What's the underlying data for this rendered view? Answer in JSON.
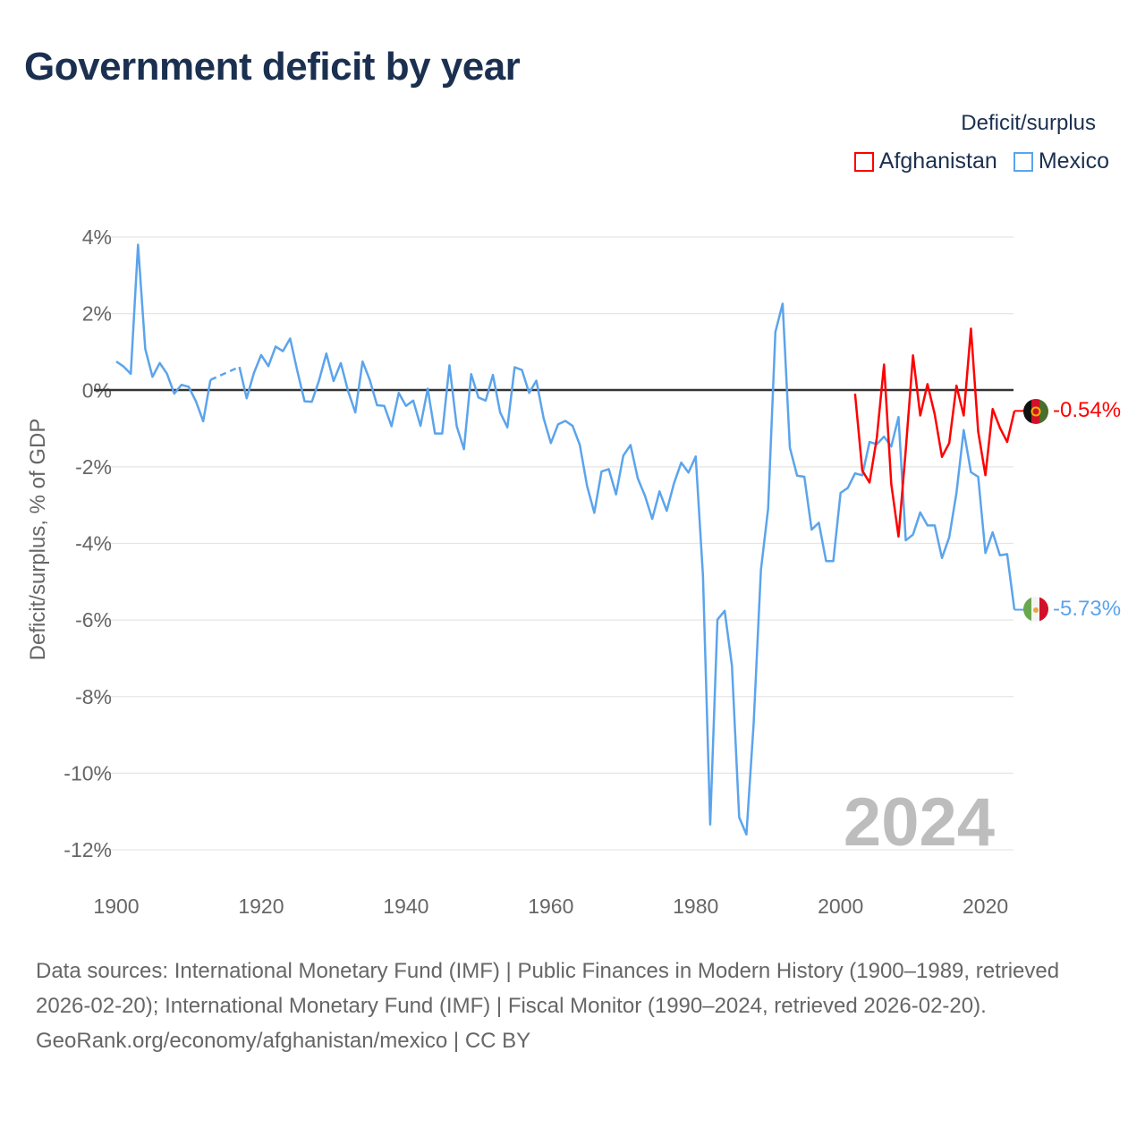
{
  "title": "Government deficit by year",
  "legend": {
    "title": "Deficit/surplus",
    "items": [
      {
        "name": "Afghanistan",
        "color": "#ff0000"
      },
      {
        "name": "Mexico",
        "color": "#5ba4ec"
      }
    ]
  },
  "chart_data": {
    "type": "line",
    "title": "Government deficit by year",
    "xlabel": "",
    "ylabel": "Deficit/surplus, % of GDP",
    "xlim": [
      1900,
      2024
    ],
    "ylim": [
      -12,
      4
    ],
    "x_ticks": [
      1900,
      1920,
      1940,
      1960,
      1980,
      2000,
      2020
    ],
    "y_ticks": [
      4,
      2,
      0,
      -2,
      -4,
      -6,
      -8,
      -10,
      -12
    ],
    "y_tick_labels": [
      "4%",
      "2%",
      "0%",
      "-2%",
      "-4%",
      "-6%",
      "-8%",
      "-10%",
      "-12%"
    ],
    "grid": true,
    "legend_position": "top-right",
    "current_year_label": "2024",
    "series": [
      {
        "name": "Mexico",
        "color": "#5ba4ec",
        "start_year": 1900,
        "end_label": "-5.73%",
        "values": [
          0.75,
          0.62,
          0.43,
          3.8,
          1.08,
          0.35,
          0.71,
          0.43,
          -0.09,
          0.14,
          0.09,
          -0.29,
          -0.81,
          0.27,
          null,
          null,
          null,
          0.61,
          -0.21,
          0.45,
          0.92,
          0.63,
          1.14,
          1.02,
          1.35,
          0.5,
          -0.29,
          -0.3,
          0.26,
          0.96,
          0.24,
          0.71,
          -0.02,
          -0.58,
          0.75,
          0.27,
          -0.39,
          -0.41,
          -0.94,
          -0.07,
          -0.41,
          -0.27,
          -0.93,
          0.04,
          -1.13,
          -1.13,
          0.65,
          -0.94,
          -1.54,
          0.42,
          -0.19,
          -0.27,
          0.4,
          -0.58,
          -0.97,
          0.6,
          0.53,
          -0.07,
          0.25,
          -0.73,
          -1.38,
          -0.89,
          -0.8,
          -0.93,
          -1.43,
          -2.5,
          -3.2,
          -2.12,
          -2.06,
          -2.72,
          -1.71,
          -1.43,
          -2.3,
          -2.76,
          -3.36,
          -2.64,
          -3.15,
          -2.43,
          -1.89,
          -2.15,
          -1.73,
          -4.84,
          -11.34,
          -5.99,
          -5.76,
          -7.19,
          -11.15,
          -11.6,
          -8.7,
          -4.7,
          -3.09,
          1.52,
          2.26,
          -1.5,
          -2.23,
          -2.26,
          -3.64,
          -3.46,
          -4.46,
          -4.46,
          -2.68,
          -2.55,
          -2.17,
          -2.22,
          -1.35,
          -1.41,
          -1.21,
          -1.47,
          -0.7,
          -3.92,
          -3.77,
          -3.19,
          -3.53,
          -3.53,
          -4.38,
          -3.84,
          -2.68,
          -1.04,
          -2.14,
          -2.26,
          -4.25,
          -3.71,
          -4.31,
          -4.28,
          -5.73
        ]
      },
      {
        "name": "Afghanistan",
        "color": "#ff0000",
        "start_year": 2002,
        "end_label": "-0.54%",
        "values": [
          -0.09,
          -2.1,
          -2.41,
          -1.25,
          0.67,
          -2.45,
          -3.82,
          -1.56,
          0.91,
          -0.66,
          0.16,
          -0.63,
          -1.74,
          -1.38,
          0.12,
          -0.66,
          1.61,
          -1.08,
          -2.22,
          -0.49,
          -0.98,
          -1.35,
          -0.54
        ]
      }
    ]
  },
  "footer": {
    "sources": "Data sources: International Monetary Fund (IMF) | Public Finances in Modern History (1900–1989, retrieved 2026-02-20); International Monetary Fund (IMF) | Fiscal Monitor (1990–2024, retrieved 2026-02-20).",
    "credit": "GeoRank.org/economy/afghanistan/mexico | CC BY"
  }
}
